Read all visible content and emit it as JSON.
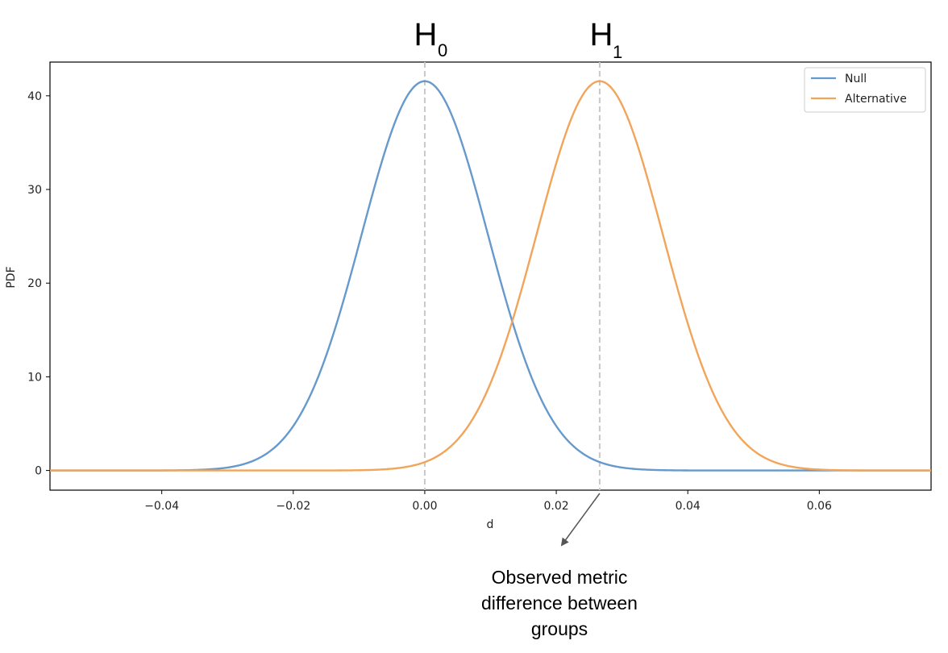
{
  "chart_data": {
    "type": "line",
    "xlabel": "d",
    "ylabel": "PDF",
    "xlim": [
      -0.057,
      0.077
    ],
    "ylim": [
      -2.1,
      43.6
    ],
    "xticks": [
      -0.04,
      -0.02,
      0.0,
      0.02,
      0.04,
      0.06
    ],
    "xtick_labels": [
      "−0.04",
      "−0.02",
      "0.00",
      "0.02",
      "0.04",
      "0.06"
    ],
    "yticks": [
      0,
      10,
      20,
      30,
      40
    ],
    "ytick_labels": [
      "0",
      "10",
      "20",
      "30",
      "40"
    ],
    "grid": false,
    "legend_position": "top-right",
    "series": [
      {
        "name": "Null",
        "distribution": "normal",
        "mean": 0.0,
        "std": 0.0096,
        "color": "#6699cc"
      },
      {
        "name": "Alternative",
        "distribution": "normal",
        "mean": 0.0266,
        "std": 0.0096,
        "color": "#f2a55a"
      }
    ],
    "reference_lines": [
      {
        "x": 0.0,
        "label": "H",
        "subscript": "0",
        "style": "dashed",
        "color": "#c8c8c8"
      },
      {
        "x": 0.0266,
        "label": "H",
        "subscript": "1",
        "style": "dashed",
        "color": "#c8c8c8"
      }
    ],
    "annotations": [
      {
        "target_x": 0.0266,
        "lines": [
          "Observed metric",
          "difference between",
          "groups"
        ]
      }
    ]
  }
}
